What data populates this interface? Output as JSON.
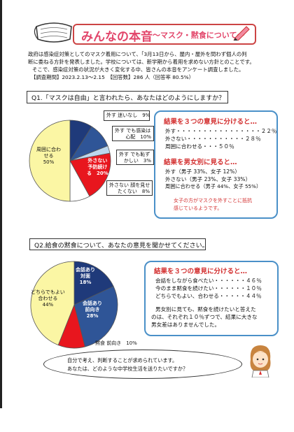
{
  "header": {
    "title": "みんなの本音",
    "subtitle": "～マスク・黙食について～"
  },
  "intro": {
    "lines": [
      "政府は感染症対策としてのマスク着用について、「3月13日から、屋内・屋外を問わず個人の判",
      "断に委ねる方針を発表しました。学校については、新学期から着用を求めない方針とのことです。",
      "そこで、感染症対策の状況が大きく変化する中、皆さんの本音をアンケート調査しました。",
      "【調査期間】2023.2.13～2.15　【回答数】286 人（回答率 80.5%）"
    ]
  },
  "q1": {
    "question": "Q1.「マスクは自由」と言われたら、あなたはどのようにしますか？",
    "chart_data": {
      "type": "pie",
      "categories": [
        "外す 迷いなし",
        "外す でも感染は心配",
        "外す でも恥ずかしい",
        "外さない 予防続ける",
        "外さない 顔を見せたくない",
        "周囲に合わせる"
      ],
      "values": [
        9,
        10,
        3,
        20,
        8,
        50
      ],
      "colors": [
        "#1f3a7a",
        "#2f5597",
        "#bcd7ee",
        "#e8161e",
        "#ffffff",
        "#fbf6a4"
      ]
    },
    "labels": {
      "nomayoi": "外す 迷いなし　9%",
      "shinpai_1": "外す でも感染は",
      "shinpai_2": "心配　10%",
      "hazukashii_1": "外す でも恥ず",
      "hazukashii_2": "かしい　3%",
      "yobou_1": "外さない",
      "yobou_2": "予防続け",
      "yobou_3": "る　20%",
      "kao_1": "外さない 顔を見せ",
      "kao_2": "たくない　8%",
      "shui_1": "周囲に合わ",
      "shui_2": "せる",
      "shui_3": "50%"
    },
    "summary": {
      "heading": "結果を３つの意見に分けると…",
      "lines": [
        "外す・・・・・・・・・・・・・・・・２２％",
        "外さない・・・・・・・・・・・２８％",
        "周囲に合わせる・・・５０％"
      ],
      "heading2": "結果を男女別に見ると…",
      "lines2": [
        "外す（男子 33%、女子 12%）",
        "外さない（男子 23%、女子 33%）",
        "周囲に合わせる（男子 44%、女子 55%）"
      ],
      "note": [
        "女子の方がマスクを外すことに抵抗",
        "感じているようです。"
      ]
    }
  },
  "q2": {
    "question": "Q2.給食の黙食について、あなたの意見を聞かせてください。",
    "chart_data": {
      "type": "pie",
      "categories": [
        "会話あり 対面",
        "会話あり 前向き",
        "黙食 前向き",
        "どちらでもよい 合わせる"
      ],
      "values": [
        18,
        28,
        10,
        44
      ],
      "colors": [
        "#1f3a7a",
        "#2f5597",
        "#e8161e",
        "#fbf6a4"
      ]
    },
    "labels": {
      "taimen": [
        "会話あり",
        "対面",
        "18%"
      ],
      "maemuki": [
        "会話あり",
        "前向き",
        "28%"
      ],
      "mokushoku": "黙食 前向き　10%",
      "dochira": [
        "どちらでもよい",
        "合わせる",
        "44%"
      ]
    },
    "summary": {
      "heading": "結果を３つの意見に分けると…",
      "lines": [
        "会話をしながら食べたい・・・・・・４６％",
        "今のまま黙食を続けたい・・・・・・１０％",
        "どちらでもよい、合わせる・・・・・４４％"
      ],
      "note": [
        "男女別に見ても、黙食を続けたいと答えた",
        "のは、それぞれ１０％ずつで、結果に大きな",
        "男女差はありませんでした。"
      ]
    }
  },
  "bubble": {
    "lines": [
      "自分で考え、判断することが求められています。",
      "あなたは、どのような中学校生活を送りたいですか？"
    ]
  }
}
